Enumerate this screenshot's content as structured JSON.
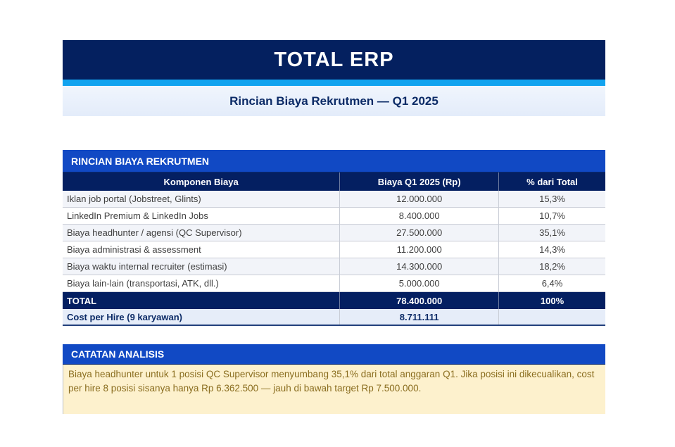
{
  "page": {
    "title": "TOTAL ERP",
    "subtitle": "Rincian Biaya Rekrutmen — Q1 2025"
  },
  "colors": {
    "banner_navy": "#04205f",
    "accent_azure": "#12a3ef",
    "section_blue": "#1149c4",
    "note_cream": "#fdf1cd",
    "note_text_brown": "#8a6d1f"
  },
  "cost_table": {
    "section_title": "RINCIAN BIAYA REKRUTMEN",
    "columns": [
      "Komponen Biaya",
      "Biaya Q1 2025 (Rp)",
      "% dari Total"
    ],
    "rows": [
      {
        "komponen": "Iklan job portal (Jobstreet, Glints)",
        "biaya": "12.000.000",
        "pct": "15,3%"
      },
      {
        "komponen": "LinkedIn Premium & LinkedIn Jobs",
        "biaya": "8.400.000",
        "pct": "10,7%"
      },
      {
        "komponen": "Biaya headhunter / agensi (QC Supervisor)",
        "biaya": "27.500.000",
        "pct": "35,1%"
      },
      {
        "komponen": "Biaya administrasi & assessment",
        "biaya": "11.200.000",
        "pct": "14,3%"
      },
      {
        "komponen": "Biaya waktu internal recruiter (estimasi)",
        "biaya": "14.300.000",
        "pct": "18,2%"
      },
      {
        "komponen": "Biaya lain-lain (transportasi, ATK, dll.)",
        "biaya": "5.000.000",
        "pct": "6,4%"
      }
    ],
    "total": {
      "komponen": "TOTAL",
      "biaya": "78.400.000",
      "pct": "100%"
    },
    "cost_per_hire": {
      "komponen": "Cost per Hire (9 karyawan)",
      "biaya": "8.711.111",
      "pct": ""
    }
  },
  "analysis": {
    "section_title": "CATATAN ANALISIS",
    "note": "Biaya headhunter untuk 1 posisi QC Supervisor menyumbang 35,1% dari total anggaran Q1. Jika posisi ini dikecualikan, cost per hire 8 posisi sisanya hanya Rp 6.362.500 — jauh di bawah target Rp 7.500.000."
  }
}
